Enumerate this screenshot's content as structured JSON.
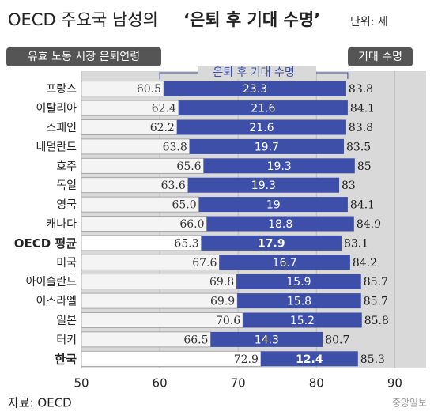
{
  "chart_data": {
    "type": "bar",
    "title": "OECD 주요국 남성의",
    "title_emphasis": "‘은퇴 후 기대 수명’",
    "unit": "단위: 세",
    "legend_retirement": "유효 노동 시장 은퇴연령",
    "legend_years": "은퇴 후 기대 수명",
    "legend_life": "기대 수명",
    "source": "자료: OECD",
    "credit": "중앙일보",
    "categories": [
      "프랑스",
      "이탈리아",
      "스페인",
      "네덜란드",
      "호주",
      "독일",
      "영국",
      "캐나다",
      "OECD 평균",
      "미국",
      "아이슬란드",
      "이스라엘",
      "일본",
      "터키",
      "한국"
    ],
    "series": [
      {
        "name": "유효 노동 시장 은퇴연령",
        "color": "#f4f4f4",
        "values": [
          60.5,
          62.4,
          62.2,
          63.8,
          65.6,
          63.6,
          65.0,
          66.0,
          65.3,
          67.6,
          69.8,
          69.9,
          70.6,
          66.5,
          72.9
        ],
        "value_labels": [
          "60.5",
          "62.4",
          "62.2",
          "63.8",
          "65.6",
          "63.6",
          "65.0",
          "66.0",
          "65.3",
          "67.6",
          "69.8",
          "69.9",
          "70.6",
          "66.5",
          "72.9"
        ]
      },
      {
        "name": "은퇴 후 기대 수명",
        "color": "#3d4fa8",
        "values": [
          23.3,
          21.6,
          21.6,
          19.7,
          19.3,
          19.3,
          19.0,
          18.8,
          17.9,
          16.7,
          15.9,
          15.8,
          15.2,
          14.3,
          12.4
        ]
      }
    ],
    "totals": [
      83.8,
      84.1,
      83.8,
      83.5,
      85.0,
      83.0,
      84.1,
      84.9,
      83.1,
      84.2,
      85.7,
      85.7,
      85.8,
      80.7,
      85.3
    ],
    "highlight": [
      8,
      14
    ],
    "xlim": [
      50,
      94
    ],
    "xticks": [
      50,
      60,
      70,
      80,
      90
    ],
    "grid": true
  }
}
